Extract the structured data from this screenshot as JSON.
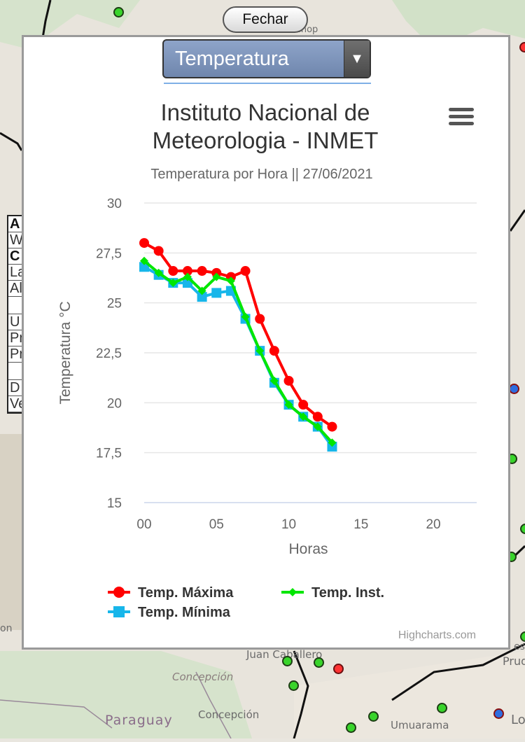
{
  "close_button": {
    "label": "Fechar"
  },
  "select": {
    "value": "Temperatura"
  },
  "chart_menu": {
    "icon": "hamburger-icon"
  },
  "credits": "Highcharts.com",
  "map": {
    "labels": [
      "Sinop",
      "Juan Caballero",
      "Concepción",
      "Paraguay",
      "Concepción",
      "Umuarama",
      "Prud",
      "Lo",
      "es",
      "on"
    ],
    "side_table": [
      "A",
      "W",
      "C",
      "La",
      "Al",
      "",
      "U",
      "Pr",
      "Pr",
      "",
      "D",
      "Ve"
    ]
  },
  "chart_data": {
    "type": "line",
    "title": "Instituto Nacional de Meteorologia - INMET",
    "subtitle": "Temperatura por Hora || 27/06/2021",
    "xlabel": "Horas",
    "ylabel": "Temperatura °C",
    "xlim": [
      0,
      23
    ],
    "ylim": [
      15,
      30
    ],
    "x_ticks": [
      "00",
      "05",
      "10",
      "15",
      "20"
    ],
    "y_ticks": [
      "15",
      "17,5",
      "20",
      "22,5",
      "25",
      "27,5",
      "30"
    ],
    "grid": true,
    "legend_position": "bottom",
    "x": [
      0,
      1,
      2,
      3,
      4,
      5,
      6,
      7,
      8,
      9,
      10,
      11,
      12,
      13
    ],
    "series": [
      {
        "name": "Temp. Máxima",
        "color": "#ff0000",
        "marker": "circle",
        "values": [
          28.0,
          27.6,
          26.6,
          26.6,
          26.6,
          26.5,
          26.3,
          26.6,
          24.2,
          22.6,
          21.1,
          19.9,
          19.3,
          18.8
        ]
      },
      {
        "name": "Temp. Inst.",
        "color": "#00e600",
        "marker": "diamond",
        "values": [
          27.1,
          26.5,
          26.0,
          26.3,
          25.6,
          26.3,
          26.1,
          24.3,
          22.6,
          21.1,
          19.9,
          19.3,
          18.8,
          18.0
        ]
      },
      {
        "name": "Temp. Mínima",
        "color": "#17b6ea",
        "marker": "square",
        "values": [
          26.8,
          26.4,
          26.0,
          26.0,
          25.3,
          25.5,
          25.6,
          24.2,
          22.6,
          21.0,
          19.9,
          19.3,
          18.8,
          17.8
        ]
      }
    ]
  }
}
